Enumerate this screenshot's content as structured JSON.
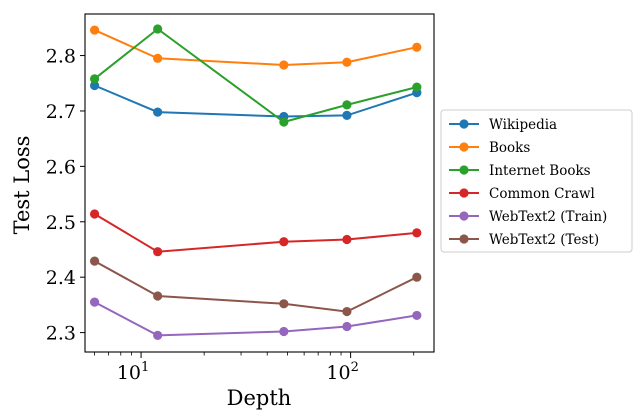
{
  "chart_data": {
    "type": "line",
    "title": "",
    "xlabel": "Depth",
    "ylabel": "Test Loss",
    "xscale": "log",
    "xlim": [
      5.4,
      250
    ],
    "ylim": [
      2.265,
      2.875
    ],
    "x": [
      6,
      12,
      48,
      96,
      207
    ],
    "xticks": [
      {
        "value": 10,
        "base": "10",
        "exp": "1"
      },
      {
        "value": 100,
        "base": "10",
        "exp": "2"
      }
    ],
    "yticks": [
      2.3,
      2.4,
      2.5,
      2.6,
      2.7,
      2.8
    ],
    "ytick_labels": [
      "2.3",
      "2.4",
      "2.5",
      "2.6",
      "2.7",
      "2.8"
    ],
    "grid": false,
    "legend_position": "right, outside plot",
    "series": [
      {
        "name": "Wikipedia",
        "color": "#1f77b4",
        "values": [
          2.746,
          2.698,
          2.69,
          2.692,
          2.733
        ]
      },
      {
        "name": "Books",
        "color": "#ff7f0e",
        "values": [
          2.846,
          2.795,
          2.783,
          2.788,
          2.815
        ]
      },
      {
        "name": "Internet Books",
        "color": "#2ca02c",
        "values": [
          2.758,
          2.848,
          2.68,
          2.711,
          2.743
        ]
      },
      {
        "name": "Common Crawl",
        "color": "#d62728",
        "values": [
          2.514,
          2.446,
          2.464,
          2.468,
          2.48
        ]
      },
      {
        "name": "WebText2 (Train)",
        "color": "#9467bd",
        "values": [
          2.355,
          2.295,
          2.302,
          2.311,
          2.331
        ]
      },
      {
        "name": "WebText2 (Test)",
        "color": "#8c564b",
        "values": [
          2.429,
          2.366,
          2.352,
          2.338,
          2.4
        ]
      }
    ]
  }
}
